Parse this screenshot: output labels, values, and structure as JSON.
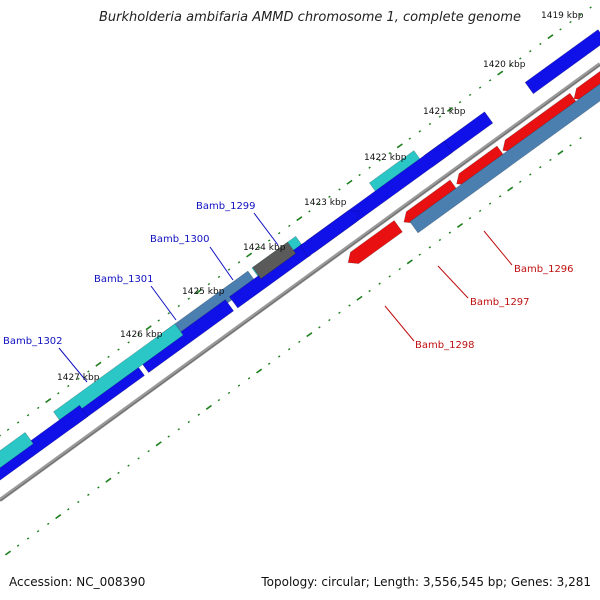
{
  "title": "Burkholderia ambifaria AMMD chromosome 1, complete genome",
  "footer": {
    "accession": "Accession: NC_008390",
    "summary": "Topology: circular; Length: 3,556,545 bp; Genes: 3,281"
  },
  "colors": {
    "tick": "#1e7f1e",
    "backbone": "#808080",
    "forward_gene": "#1010e8",
    "forward_rna": "#2bc6c6",
    "forward_other": "#4a7fb0",
    "reverse_gene": "#e81010",
    "reverse_other": "#4a7fb0",
    "pseudo": "#5a5a5a",
    "forward_label": "#1010c0",
    "reverse_label": "#c01010"
  },
  "scale_labels": [
    "1419 kbp",
    "1420 kbp",
    "1421 kbp",
    "1422 kbp",
    "1423 kbp",
    "1424 kbp",
    "1425 kbp",
    "1426 kbp",
    "1427 kbp"
  ],
  "gene_labels": [
    {
      "name": "Bamb_1296",
      "strand": "reverse"
    },
    {
      "name": "Bamb_1297",
      "strand": "reverse"
    },
    {
      "name": "Bamb_1298",
      "strand": "reverse"
    },
    {
      "name": "Bamb_1299",
      "strand": "forward"
    },
    {
      "name": "Bamb_1300",
      "strand": "forward"
    },
    {
      "name": "Bamb_1301",
      "strand": "forward"
    },
    {
      "name": "Bamb_1302",
      "strand": "forward"
    }
  ]
}
